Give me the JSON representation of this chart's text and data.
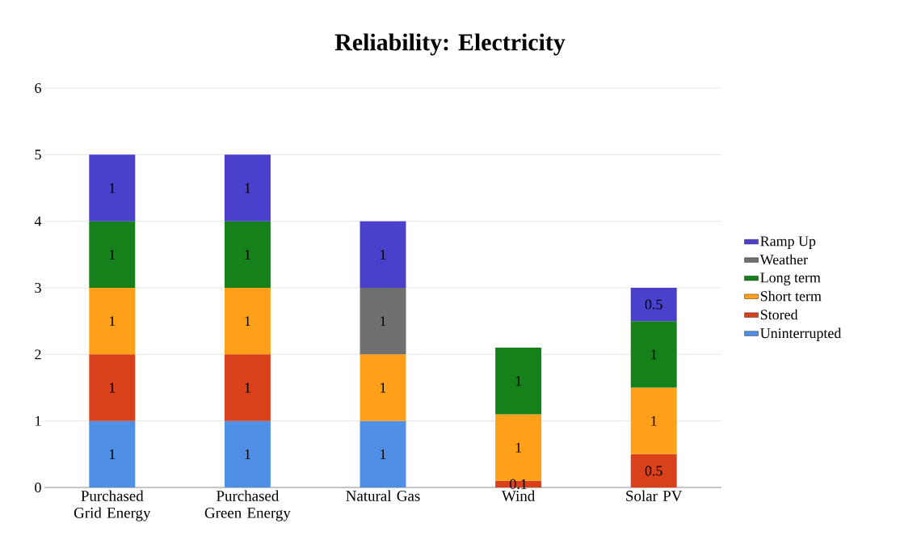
{
  "chart_data": {
    "type": "bar",
    "title": "Reliability: Electricity",
    "stacked": true,
    "categories": [
      "Purchased Grid Energy",
      "Purchased Green Energy",
      "Natural Gas",
      "Wind",
      "Solar PV"
    ],
    "series": [
      {
        "name": "Uninterrupted",
        "color": "#4f8fe6",
        "values": [
          1,
          1,
          1,
          null,
          null
        ]
      },
      {
        "name": "Stored",
        "color": "#d9401c",
        "values": [
          1,
          1,
          null,
          0.1,
          0.5
        ]
      },
      {
        "name": "Short term",
        "color": "#ffa01a",
        "values": [
          1,
          1,
          1,
          1,
          1
        ]
      },
      {
        "name": "Long term",
        "color": "#16801a",
        "values": [
          1,
          1,
          null,
          1,
          1
        ]
      },
      {
        "name": "Weather",
        "color": "#707070",
        "values": [
          null,
          null,
          1,
          null,
          null
        ]
      },
      {
        "name": "Ramp Up",
        "color": "#4a40cc",
        "values": [
          1,
          1,
          1,
          null,
          0.5
        ]
      }
    ],
    "ylim": [
      0,
      6
    ],
    "yticks": [
      0,
      1,
      2,
      3,
      4,
      5,
      6
    ],
    "grid": "y",
    "legend": "right",
    "data_labels": true
  }
}
